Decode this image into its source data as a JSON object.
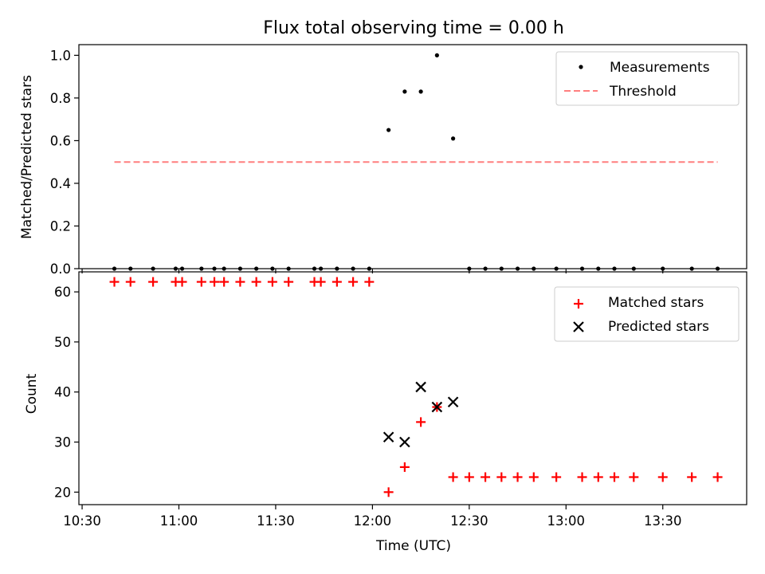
{
  "chart_data": [
    {
      "type": "scatter",
      "title": "Flux total observing time = 0.00 h",
      "xlabel": "",
      "ylabel": "Matched/Predicted stars",
      "ylim": [
        0,
        1.05
      ],
      "xlim": [
        "10:29",
        "13:56"
      ],
      "yticks": [
        "0.0",
        "0.2",
        "0.4",
        "0.6",
        "0.8",
        "1.0"
      ],
      "ytick_values": [
        0,
        0.2,
        0.4,
        0.6,
        0.8,
        1.0
      ],
      "legend": {
        "position": "top-right",
        "entries": [
          "Measurements",
          "Threshold"
        ]
      },
      "series": [
        {
          "name": "Measurements",
          "marker": "dot",
          "color": "#000000",
          "x": [
            "10:40",
            "10:45",
            "10:52",
            "10:59",
            "11:01",
            "11:07",
            "11:11",
            "11:14",
            "11:19",
            "11:24",
            "11:29",
            "11:34",
            "11:42",
            "11:44",
            "11:49",
            "11:54",
            "11:59",
            "12:05",
            "12:10",
            "12:15",
            "12:20",
            "12:25",
            "12:30",
            "12:35",
            "12:40",
            "12:45",
            "12:50",
            "12:57",
            "13:05",
            "13:10",
            "13:15",
            "13:21",
            "13:30",
            "13:39",
            "13:47"
          ],
          "y": [
            0,
            0,
            0,
            0,
            0,
            0,
            0,
            0,
            0,
            0,
            0,
            0,
            0,
            0,
            0,
            0,
            0,
            0.65,
            0.83,
            0.83,
            1.0,
            0.61,
            0,
            0,
            0,
            0,
            0,
            0,
            0,
            0,
            0,
            0,
            0,
            0,
            0
          ]
        },
        {
          "name": "Threshold",
          "style": "dashed",
          "color": "#ff7f7f",
          "x": [
            "10:40",
            "13:47"
          ],
          "y": [
            0.5,
            0.5
          ]
        }
      ]
    },
    {
      "type": "scatter",
      "title": "",
      "xlabel": "Time (UTC)",
      "ylabel": "Count",
      "ylim": [
        17.5,
        64
      ],
      "xlim": [
        "10:29",
        "13:56"
      ],
      "yticks": [
        "20",
        "30",
        "40",
        "50",
        "60"
      ],
      "ytick_values": [
        20,
        30,
        40,
        50,
        60
      ],
      "xticks": [
        "10:30",
        "11:00",
        "11:30",
        "12:00",
        "12:30",
        "13:00",
        "13:30"
      ],
      "legend": {
        "position": "top-right",
        "entries": [
          "Matched stars",
          "Predicted stars"
        ]
      },
      "series": [
        {
          "name": "Matched stars",
          "marker": "plus",
          "color": "#ff0000",
          "x": [
            "10:40",
            "10:45",
            "10:52",
            "10:59",
            "11:01",
            "11:07",
            "11:11",
            "11:14",
            "11:19",
            "11:24",
            "11:29",
            "11:34",
            "11:42",
            "11:44",
            "11:49",
            "11:54",
            "11:59",
            "12:05",
            "12:10",
            "12:15",
            "12:20",
            "12:25",
            "12:30",
            "12:35",
            "12:40",
            "12:45",
            "12:50",
            "12:57",
            "13:05",
            "13:10",
            "13:15",
            "13:21",
            "13:30",
            "13:39",
            "13:47"
          ],
          "y": [
            62,
            62,
            62,
            62,
            62,
            62,
            62,
            62,
            62,
            62,
            62,
            62,
            62,
            62,
            62,
            62,
            62,
            20,
            25,
            34,
            37,
            23,
            23,
            23,
            23,
            23,
            23,
            23,
            23,
            23,
            23,
            23,
            23,
            23,
            23
          ]
        },
        {
          "name": "Predicted stars",
          "marker": "x",
          "color": "#000000",
          "x": [
            "12:05",
            "12:10",
            "12:15",
            "12:20",
            "12:25"
          ],
          "y": [
            31,
            30,
            41,
            37,
            38
          ]
        }
      ]
    }
  ]
}
